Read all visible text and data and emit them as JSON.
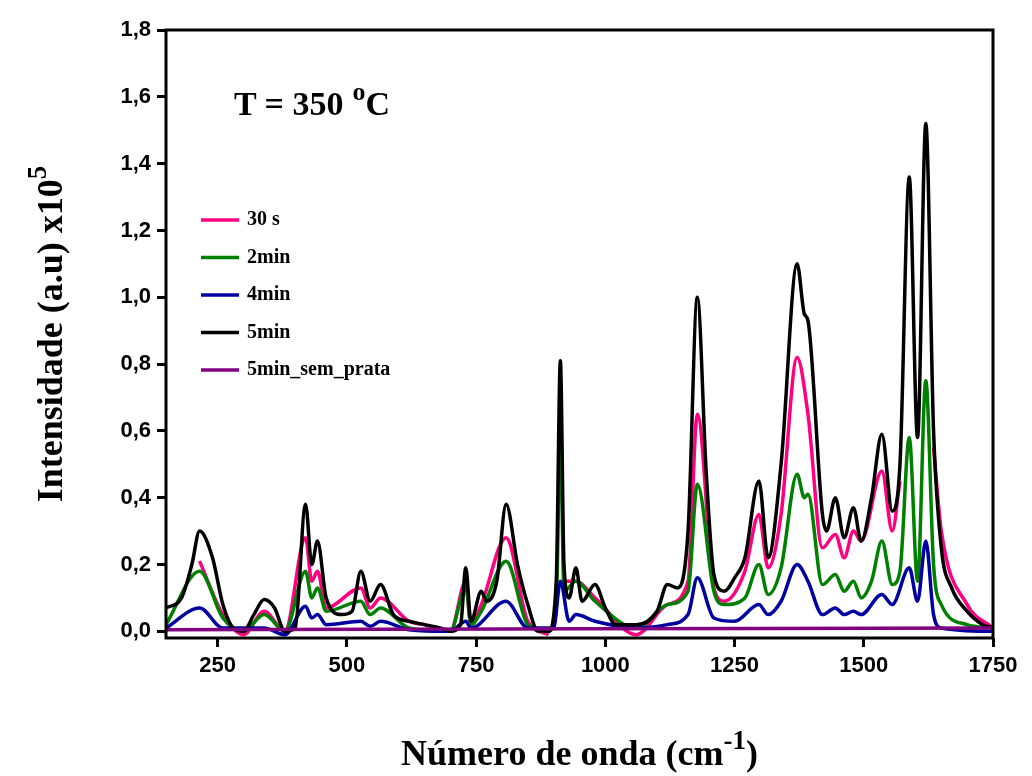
{
  "chart_data": {
    "type": "line",
    "xlabel": "Número de onda (cm$^{-1}$)",
    "ylabel": "Intensidade (a.u) x10$^{5}$",
    "annotations": [
      "T = 350 $^{o}$C"
    ],
    "xlim": [
      150,
      1750
    ],
    "xticks": [
      250,
      500,
      750,
      1000,
      1250,
      1500,
      1750
    ],
    "ylim": [
      -0.02,
      1.8
    ],
    "yticks": [
      {
        "value": 0,
        "label": "0,0"
      },
      {
        "value": 0.2,
        "label": "0,2"
      },
      {
        "value": 0.4,
        "label": "0,4"
      },
      {
        "value": 0.6,
        "label": "0,6"
      },
      {
        "value": 0.8,
        "label": "0,8"
      },
      {
        "value": 1.0,
        "label": "1,0"
      },
      {
        "value": 1.2,
        "label": "1,2"
      },
      {
        "value": 1.4,
        "label": "1,4"
      },
      {
        "value": 1.6,
        "label": "1,6"
      },
      {
        "value": 1.8,
        "label": "1,8"
      }
    ],
    "grid": false,
    "legend": "top left",
    "marker": "none",
    "line_style": "solid",
    "series": [
      {
        "name": "30 s",
        "color": "#ff0080",
        "x": [
          215,
          260,
          300,
          340,
          380,
          420,
          432,
          443,
          460,
          527,
          545,
          565,
          620,
          650,
          700,
          730,
          740,
          760,
          808,
          850,
          890,
          905,
          913,
          920,
          943,
          980,
          1060,
          1120,
          1160,
          1178,
          1210,
          1230,
          1270,
          1297,
          1315,
          1340,
          1371,
          1392,
          1420,
          1445,
          1462,
          1480,
          1495,
          1535,
          1555,
          1570,
          1588,
          1604,
          1620,
          1635,
          1650,
          1700,
          1750
        ],
        "values": [
          0.21,
          0.05,
          -0.01,
          0.06,
          0.0,
          0.28,
          0.15,
          0.18,
          0.07,
          0.13,
          0.07,
          0.1,
          0.03,
          0.02,
          0.0,
          0.15,
          0.02,
          0.08,
          0.28,
          0.03,
          -0.01,
          null,
          null,
          0.15,
          0.15,
          0.1,
          -0.01,
          0.08,
          0.15,
          0.65,
          0.13,
          0.09,
          0.18,
          0.35,
          0.19,
          0.35,
          0.82,
          0.65,
          0.25,
          0.29,
          0.22,
          0.3,
          0.27,
          0.48,
          0.3,
          0.45,
          null,
          null,
          null,
          0.55,
          0.3,
          0.08,
          0.01
        ]
      },
      {
        "name": "2min",
        "color": "#008000",
        "x": [
          150,
          215,
          260,
          300,
          340,
          380,
          420,
          432,
          443,
          460,
          527,
          545,
          565,
          620,
          700,
          730,
          740,
          760,
          808,
          850,
          890,
          905,
          913,
          920,
          943,
          980,
          1060,
          1120,
          1160,
          1178,
          1210,
          1230,
          1270,
          1297,
          1315,
          1340,
          1371,
          1385,
          1392,
          1420,
          1445,
          1462,
          1480,
          1495,
          1515,
          1535,
          1555,
          1570,
          1588,
          1604,
          1620,
          1635,
          1650,
          1700,
          1750
        ],
        "values": [
          0.02,
          0.18,
          0.04,
          0.0,
          0.05,
          0.0,
          0.18,
          0.1,
          0.13,
          0.06,
          0.09,
          0.05,
          0.07,
          0.01,
          0.0,
          0.13,
          0.02,
          0.06,
          0.21,
          0.02,
          0.0,
          0.08,
          0.6,
          0.12,
          0.15,
          0.09,
          0.01,
          0.08,
          0.12,
          0.44,
          0.12,
          0.08,
          0.1,
          0.2,
          0.11,
          0.19,
          0.47,
          0.4,
          0.41,
          0.14,
          0.17,
          0.12,
          0.15,
          0.1,
          0.15,
          0.27,
          0.14,
          0.18,
          0.58,
          0.15,
          0.75,
          0.2,
          0.08,
          0.02,
          0.01
        ]
      },
      {
        "name": "4min",
        "color": "#0000a0",
        "x": [
          150,
          215,
          260,
          340,
          380,
          420,
          432,
          443,
          460,
          527,
          545,
          565,
          620,
          700,
          730,
          740,
          808,
          850,
          900,
          913,
          930,
          943,
          980,
          1060,
          1120,
          1160,
          1178,
          1210,
          1250,
          1297,
          1315,
          1340,
          1371,
          1392,
          1420,
          1445,
          1462,
          1480,
          1495,
          1535,
          1555,
          1588,
          1604,
          1620,
          1635,
          1650,
          1750
        ],
        "values": [
          0.01,
          0.07,
          0.01,
          0.01,
          -0.01,
          0.075,
          0.04,
          0.05,
          0.02,
          0.03,
          0.015,
          0.03,
          0.005,
          0.0,
          0.03,
          0.01,
          0.09,
          0.01,
          0.01,
          0.15,
          0.03,
          0.05,
          0.03,
          0.01,
          0.02,
          0.05,
          0.16,
          0.04,
          0.03,
          0.08,
          0.05,
          0.09,
          0.2,
          0.15,
          0.05,
          0.07,
          0.05,
          0.06,
          0.05,
          0.11,
          0.08,
          0.19,
          0.09,
          0.27,
          0.05,
          0.01,
          0.0
        ]
      },
      {
        "name": "5min",
        "color": "#000000",
        "x": [
          150,
          180,
          200,
          215,
          240,
          260,
          280,
          300,
          320,
          340,
          360,
          380,
          400,
          420,
          432,
          443,
          460,
          490,
          510,
          527,
          545,
          565,
          590,
          620,
          650,
          680,
          700,
          720,
          730,
          740,
          760,
          770,
          790,
          808,
          830,
          850,
          870,
          890,
          905,
          913,
          920,
          930,
          943,
          955,
          980,
          1000,
          1020,
          1060,
          1100,
          1120,
          1140,
          1160,
          1178,
          1195,
          1210,
          1230,
          1250,
          1270,
          1297,
          1315,
          1340,
          1371,
          1385,
          1392,
          1420,
          1428,
          1445,
          1462,
          1480,
          1495,
          1515,
          1535,
          1555,
          1570,
          1588,
          1604,
          1620,
          1635,
          1650,
          1670,
          1700,
          1730,
          1750
        ],
        "values": [
          0.07,
          0.1,
          0.2,
          0.3,
          0.22,
          0.08,
          0.01,
          0.0,
          0.05,
          0.095,
          0.07,
          0.0,
          0.01,
          0.38,
          0.2,
          0.27,
          0.1,
          0.05,
          0.06,
          0.18,
          0.09,
          0.14,
          0.05,
          0.03,
          0.02,
          0.01,
          0.0,
          0.02,
          0.19,
          0.03,
          0.12,
          0.09,
          0.15,
          0.38,
          0.2,
          0.08,
          0.0,
          0.0,
          0.15,
          0.81,
          0.2,
          0.1,
          0.19,
          0.09,
          0.14,
          0.07,
          0.02,
          0.02,
          0.06,
          0.14,
          0.13,
          0.3,
          1.0,
          0.48,
          0.17,
          0.12,
          0.16,
          0.22,
          0.45,
          0.22,
          0.5,
          1.1,
          0.95,
          0.93,
          0.35,
          0.3,
          0.4,
          0.28,
          0.37,
          0.27,
          0.4,
          0.59,
          0.36,
          0.5,
          1.36,
          0.58,
          1.52,
          0.6,
          0.25,
          0.13,
          0.06,
          0.02,
          0.01
        ]
      },
      {
        "name": "5min_sem_prata",
        "color": "#800080",
        "x": [
          150,
          1750
        ],
        "values": [
          0.005,
          0.01
        ]
      }
    ]
  }
}
